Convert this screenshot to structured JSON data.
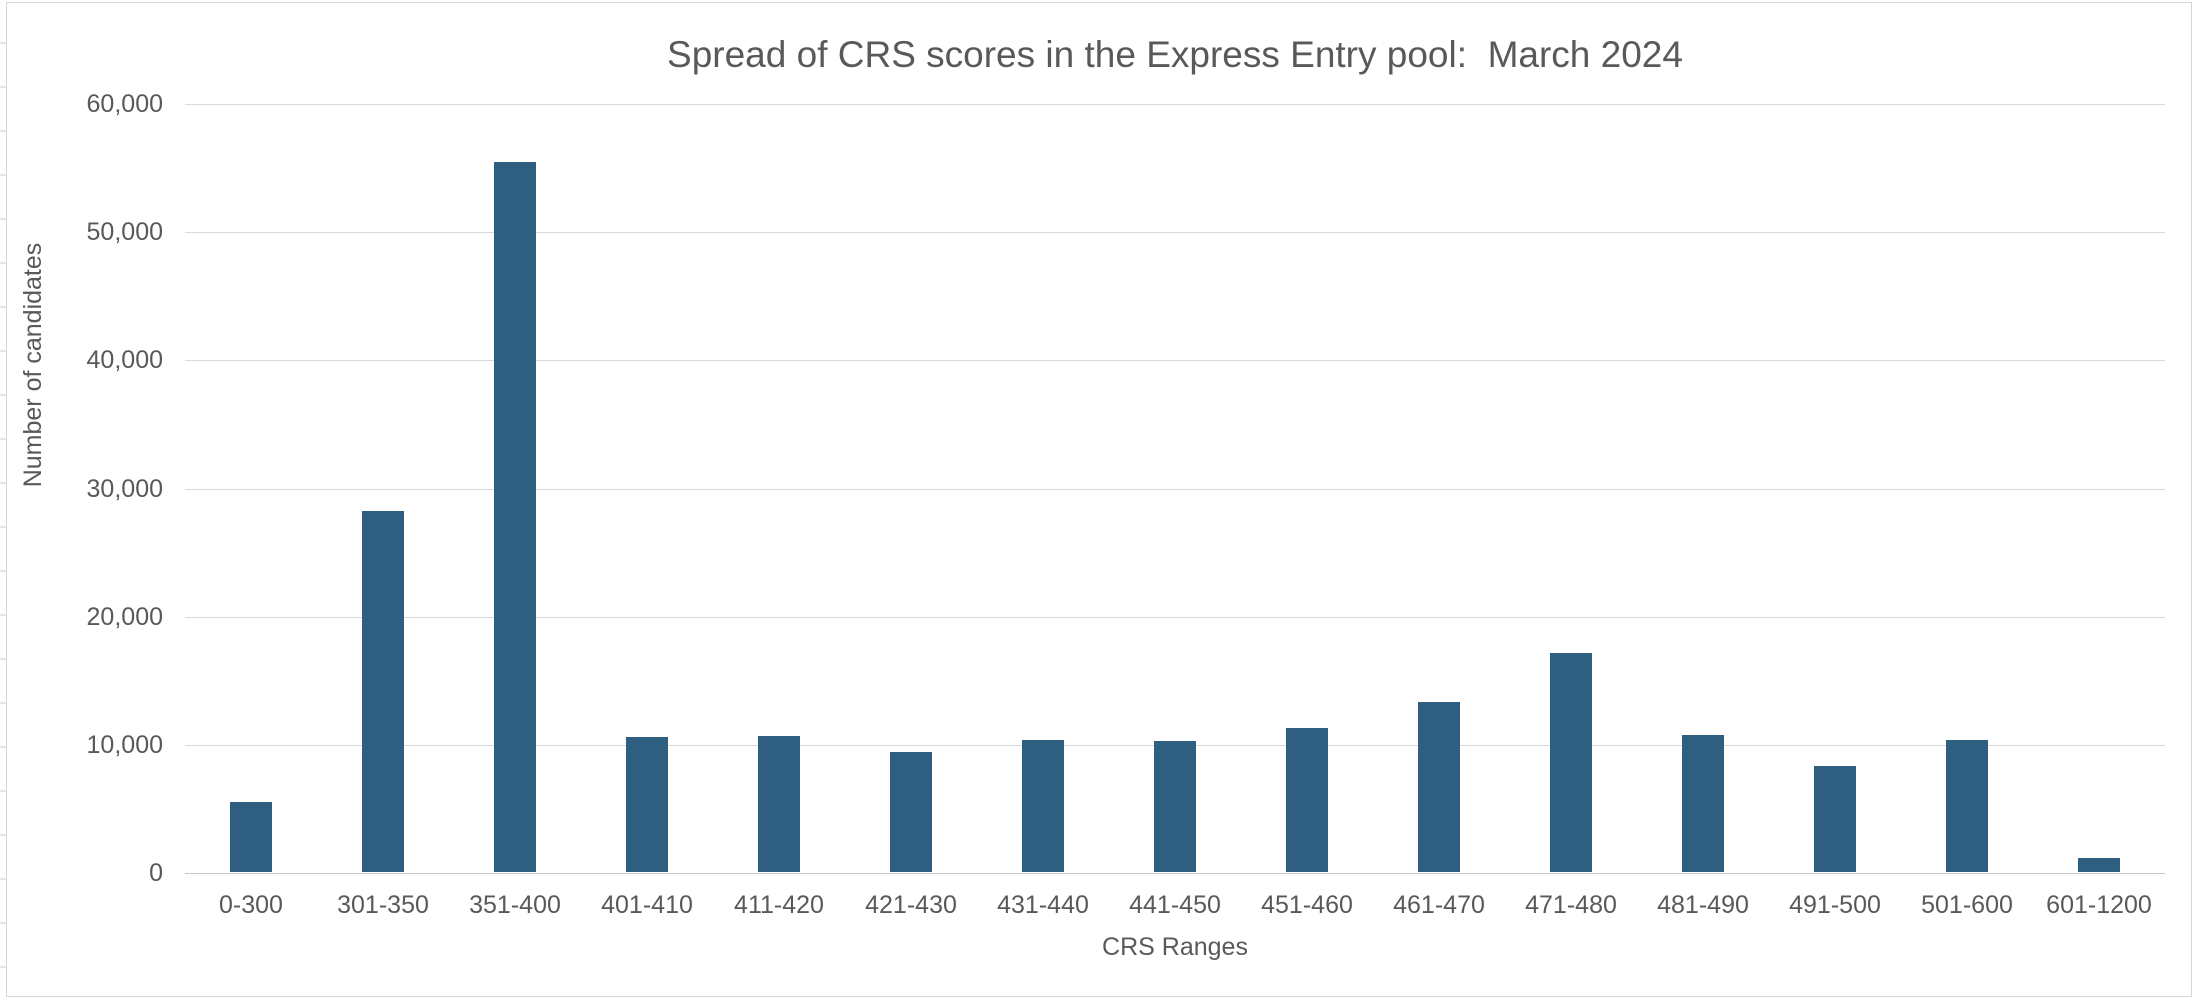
{
  "chart_data": {
    "type": "bar",
    "title": "Spread of CRS scores in the Express Entry pool:  March 2024",
    "xlabel": "CRS Ranges",
    "ylabel": "Number of candidates",
    "categories": [
      "0-300",
      "301-350",
      "351-400",
      "401-410",
      "411-420",
      "421-430",
      "431-440",
      "441-450",
      "451-460",
      "461-470",
      "471-480",
      "481-490",
      "491-500",
      "501-600",
      "601-1200"
    ],
    "values": [
      5500,
      28200,
      55400,
      10500,
      10600,
      9400,
      10300,
      10200,
      11200,
      13300,
      17100,
      10700,
      8300,
      10300,
      1100
    ],
    "ylim": [
      0,
      60000
    ],
    "ytick_values": [
      0,
      10000,
      20000,
      30000,
      40000,
      50000,
      60000
    ],
    "ytick_labels": [
      "0",
      "10,000",
      "20,000",
      "30,000",
      "40,000",
      "50,000",
      "60,000"
    ],
    "grid": true,
    "legend": "none",
    "colors": {
      "bar": "#2E5F80",
      "text": "#595959",
      "gridline": "#D9D9D9",
      "axis_line": "#C6C6C6",
      "background": "#FFFFFF",
      "card_border": "#D5D5D5"
    }
  }
}
